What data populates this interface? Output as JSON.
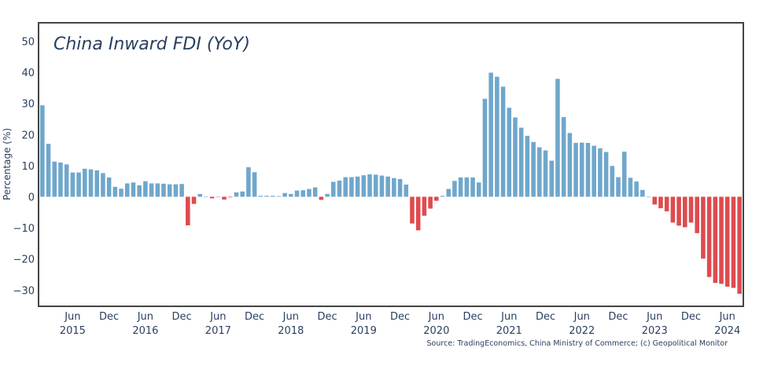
{
  "chart_data": {
    "type": "bar",
    "title": "China Inward FDI (YoY)",
    "ylabel": "Percentage (%)",
    "xlabel": "",
    "ylim": [
      -35,
      55
    ],
    "yticks": [
      -30,
      -20,
      -10,
      0,
      10,
      20,
      30,
      40,
      50
    ],
    "grid": false,
    "legend": "none",
    "colors": {
      "positive": "#6fa7cb",
      "negative": "#de4b4f",
      "frame": "#444444"
    },
    "x_tick_labels": [
      {
        "label": "Jun",
        "year": "2015",
        "month_index": 5
      },
      {
        "label": "Dec",
        "year": "",
        "month_index": 11
      },
      {
        "label": "Jun",
        "year": "2016",
        "month_index": 17
      },
      {
        "label": "Dec",
        "year": "",
        "month_index": 23
      },
      {
        "label": "Jun",
        "year": "2017",
        "month_index": 29
      },
      {
        "label": "Dec",
        "year": "",
        "month_index": 35
      },
      {
        "label": "Jun",
        "year": "2018",
        "month_index": 41
      },
      {
        "label": "Dec",
        "year": "",
        "month_index": 47
      },
      {
        "label": "Jun",
        "year": "2019",
        "month_index": 53
      },
      {
        "label": "Dec",
        "year": "",
        "month_index": 59
      },
      {
        "label": "Jun",
        "year": "2020",
        "month_index": 65
      },
      {
        "label": "Dec",
        "year": "",
        "month_index": 71
      },
      {
        "label": "Jun",
        "year": "2021",
        "month_index": 77
      },
      {
        "label": "Dec",
        "year": "",
        "month_index": 83
      },
      {
        "label": "Jun",
        "year": "2022",
        "month_index": 89
      },
      {
        "label": "Dec",
        "year": "",
        "month_index": 95
      },
      {
        "label": "Jun",
        "year": "2023",
        "month_index": 101
      },
      {
        "label": "Dec",
        "year": "",
        "month_index": 107
      },
      {
        "label": "Jun",
        "year": "2024",
        "month_index": 113
      }
    ],
    "series": [
      {
        "values": [
          29.4,
          17.0,
          11.3,
          11.0,
          10.4,
          7.8,
          7.8,
          9.0,
          8.8,
          8.5,
          7.6,
          6.2,
          3.2,
          2.6,
          4.3,
          4.6,
          3.7,
          5.0,
          4.3,
          4.3,
          4.2,
          4.0,
          4.0,
          4.1,
          -9.2,
          -2.3,
          0.9,
          0.0,
          -0.5,
          0.0,
          -0.9,
          -0.2,
          1.4,
          1.7,
          9.5,
          7.9,
          0.3,
          0.3,
          0.3,
          0.2,
          1.2,
          0.9,
          2.0,
          2.1,
          2.5,
          3.0,
          -1.0,
          0.9,
          4.8,
          5.2,
          6.3,
          6.3,
          6.5,
          6.9,
          7.2,
          7.1,
          6.8,
          6.5,
          6.0,
          5.7,
          3.9,
          -8.6,
          -10.8,
          -6.1,
          -3.8,
          -1.3,
          0.3,
          2.5,
          5.1,
          6.2,
          6.2,
          6.2,
          4.6,
          31.5,
          39.9,
          38.6,
          35.4,
          28.6,
          25.5,
          22.2,
          19.6,
          17.6,
          15.9,
          14.9,
          11.6,
          37.9,
          25.6,
          20.5,
          17.3,
          17.4,
          17.3,
          16.4,
          15.6,
          14.4,
          9.9,
          6.3,
          14.5,
          6.1,
          4.9,
          2.2,
          0.0,
          -2.5,
          -3.7,
          -4.7,
          -8.3,
          -9.3,
          -9.8,
          -8.3,
          -11.7,
          -19.9,
          -25.8,
          -27.7,
          -28.0,
          -28.9,
          -29.3,
          -31.2
        ]
      }
    ]
  },
  "source_note": "Source: TradingEconomics, China Ministry of Commerce; (c) Geopolitical Monitor"
}
